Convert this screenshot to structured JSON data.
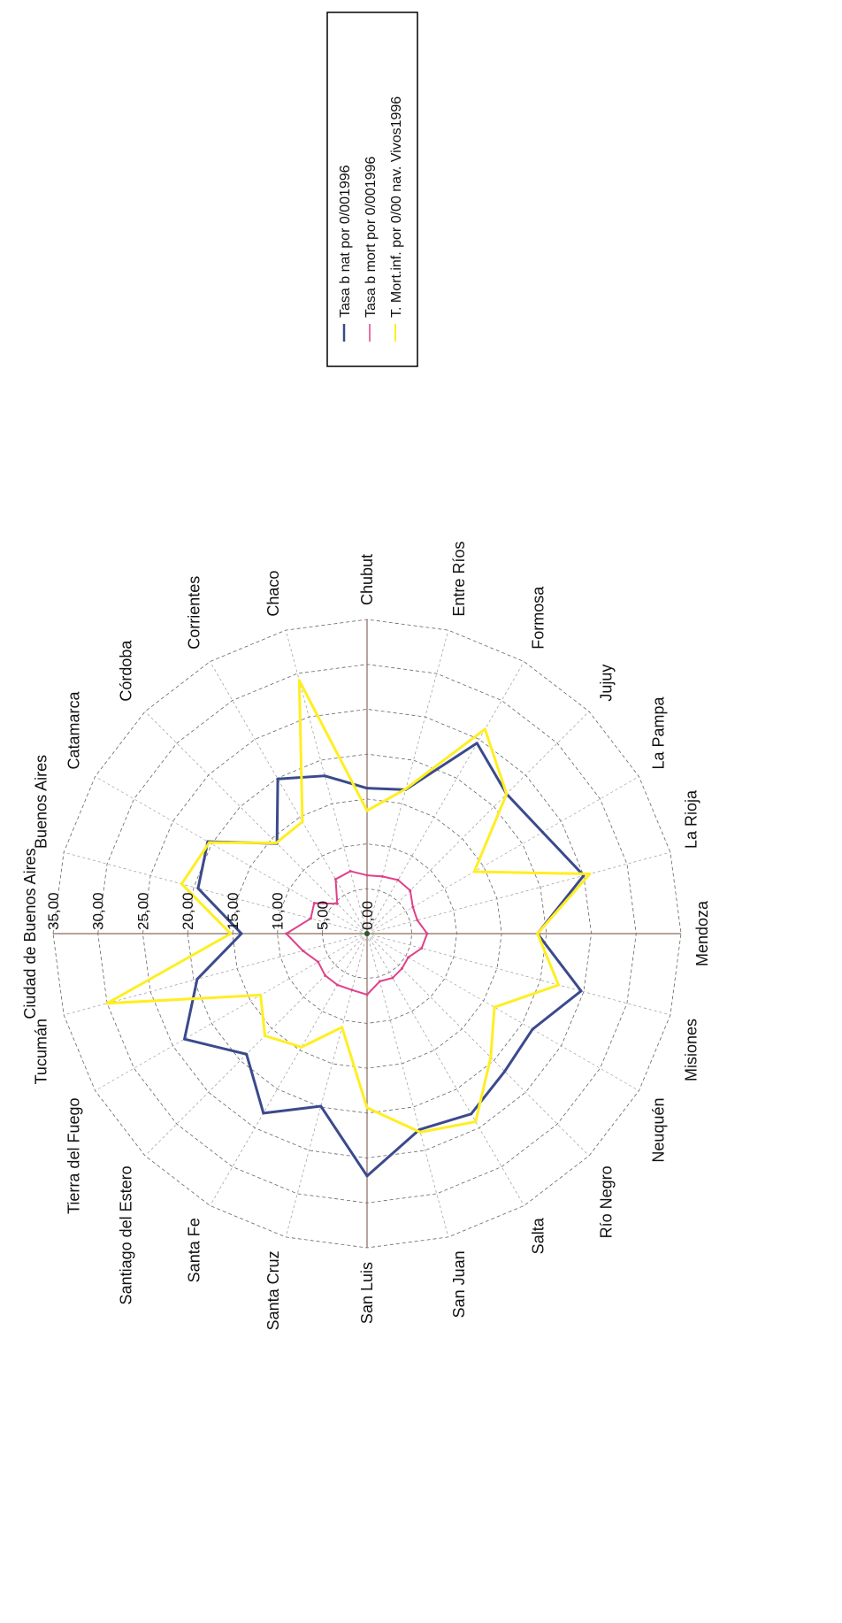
{
  "chart_data": {
    "type": "radar",
    "categories": [
      "Ciudad de Buenos Aires",
      "Buenos Aires",
      "Catamarca",
      "Córdoba",
      "Corrientes",
      "Chaco",
      "Chubut",
      "Entre Ríos",
      "Formosa",
      "Jujuy",
      "La Pampa",
      "La Rioja",
      "Mendoza",
      "Misiones",
      "Neuquén",
      "Río Negro",
      "Salta",
      "San Juan",
      "San Luis",
      "Santa Cruz",
      "Santa Fe",
      "Santiago del Estero",
      "Tierra del Fuego",
      "Tucumán"
    ],
    "rlim": [
      0,
      35
    ],
    "rticks": [
      "0,00",
      "5,00",
      "10,00",
      "15,00",
      "20,00",
      "25,00",
      "30,00",
      "35,00"
    ],
    "grid": true,
    "legend_position": "top-right",
    "series": [
      {
        "name": "Tasa b nat por 0/001996",
        "color": "#3b4a8c",
        "values": [
          14.0,
          19.5,
          20.5,
          14.2,
          19.9,
          18.2,
          16.2,
          16.6,
          24.5,
          22.0,
          22.6,
          25.0,
          19.0,
          24.7,
          21.3,
          21.7,
          23.2,
          22.6,
          27.0,
          19.9,
          23.1,
          19.0,
          23.5,
          19.6
        ]
      },
      {
        "name": "Tasa b mort por 0/001996",
        "color": "#e0408a",
        "values": [
          9.0,
          6.5,
          6.8,
          4.7,
          7.0,
          7.2,
          6.5,
          6.6,
          6.9,
          6.8,
          5.9,
          5.8,
          6.7,
          6.3,
          5.3,
          5.5,
          5.7,
          5.5,
          6.8,
          6.5,
          6.6,
          6.6,
          6.3,
          7.4
        ]
      },
      {
        "name": "T. Mort.inf. por 0/00 nav. Vivos1996",
        "color": "#ffee22",
        "values": [
          15.2,
          21.4,
          20.3,
          14.3,
          14.4,
          29.2,
          13.7,
          16.7,
          26.3,
          22.0,
          13.8,
          25.7,
          19.0,
          22.1,
          16.4,
          19.5,
          24.2,
          22.9,
          19.4,
          10.8,
          14.6,
          16.1,
          13.7,
          30.0
        ]
      }
    ]
  }
}
